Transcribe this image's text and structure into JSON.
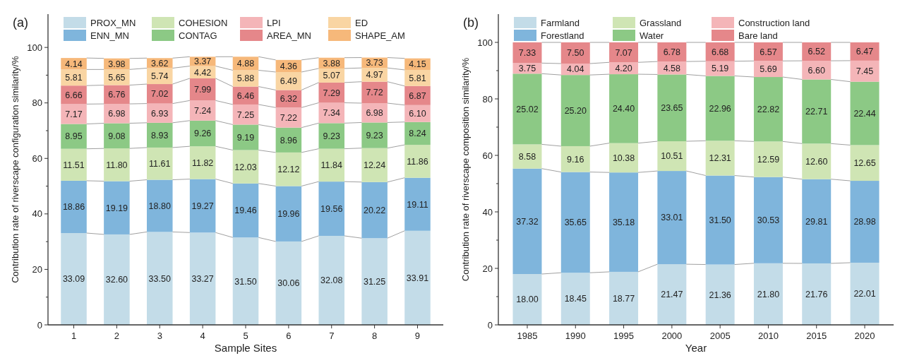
{
  "chart_data": [
    {
      "type": "bar",
      "title": "(a)",
      "xlabel": "Sample Sites",
      "ylabel": "Contribution rate of riverscape configuration similarity/%",
      "stacked": true,
      "legend": "top",
      "grid": false,
      "categories": [
        "1",
        "2",
        "3",
        "4",
        "5",
        "6",
        "7",
        "8",
        "9"
      ],
      "ylim": [
        0,
        112
      ],
      "yticks": [
        0,
        {
          "value": 10,
          "label": null
        },
        20,
        {
          "value": 30,
          "label": null
        },
        40,
        {
          "value": 50,
          "label": null
        },
        60,
        {
          "value": 70,
          "label": null
        },
        80,
        {
          "value": 90,
          "label": null
        },
        100
      ],
      "series": [
        {
          "name": "PROX_MN",
          "color": "#c3dce8",
          "values": [
            33.09,
            32.6,
            33.5,
            33.27,
            31.5,
            30.06,
            32.08,
            31.25,
            33.91
          ],
          "value_labels": [
            "33.09",
            "32.60",
            "33.50",
            "33.27",
            "31.50",
            "30.06",
            "32.08",
            "31.25",
            "33.91"
          ]
        },
        {
          "name": "ENN_MN",
          "color": "#7fb5dc",
          "values": [
            18.86,
            19.19,
            18.8,
            19.27,
            19.46,
            19.96,
            19.56,
            20.22,
            19.11
          ],
          "value_labels": [
            "18.86",
            "19.19",
            "18.80",
            "19.27",
            "19.46",
            "19.96",
            "19.56",
            "20.22",
            "19.11"
          ]
        },
        {
          "name": "COHESION",
          "color": "#cfe5b4",
          "values": [
            11.51,
            11.8,
            11.61,
            11.82,
            12.03,
            12.12,
            11.84,
            12.24,
            11.86
          ],
          "value_labels": [
            "11.51",
            "11.80",
            "11.61",
            "11.82",
            "12.03",
            "12.12",
            "11.84",
            "12.24",
            "11.86"
          ]
        },
        {
          "name": "CONTAG",
          "color": "#8cc985",
          "values": [
            8.95,
            9.08,
            8.93,
            9.26,
            9.19,
            8.96,
            9.23,
            9.23,
            8.24
          ],
          "value_labels": [
            "8.95",
            "9.08",
            "8.93",
            "9.26",
            "9.19",
            "8.96",
            "9.23",
            "9.23",
            "8.24"
          ]
        },
        {
          "name": "LPI",
          "color": "#f4b5b8",
          "values": [
            7.17,
            6.98,
            6.93,
            7.24,
            7.25,
            7.22,
            7.34,
            6.98,
            6.1
          ],
          "value_labels": [
            "7.17",
            "6.98",
            "6.93",
            "7.24",
            "7.25",
            "7.22",
            "7.34",
            "6.98",
            "6.10"
          ]
        },
        {
          "name": "AREA_MN",
          "color": "#e5878a",
          "values": [
            6.66,
            6.76,
            7.02,
            7.99,
            6.46,
            6.32,
            7.29,
            7.72,
            6.87
          ],
          "value_labels": [
            "6.66",
            "6.76",
            "7.02",
            "7.99",
            "6.46",
            "6.32",
            "7.29",
            "7.72",
            "6.87"
          ]
        },
        {
          "name": "ED",
          "color": "#f9d5a3",
          "values": [
            5.81,
            5.65,
            5.74,
            4.42,
            5.88,
            6.49,
            5.07,
            4.97,
            5.81
          ],
          "value_labels": [
            "5.81",
            "5.65",
            "5.74",
            "4.42",
            "5.88",
            "6.49",
            "5.07",
            "4.97",
            "5.81"
          ]
        },
        {
          "name": "SHAPE_AM",
          "color": "#f6b87a",
          "values": [
            4.14,
            3.98,
            3.62,
            3.37,
            4.88,
            4.36,
            3.88,
            3.73,
            4.15
          ],
          "value_labels": [
            "4.14",
            "3.98",
            "3.62",
            "3.37",
            "4.88",
            "4.36",
            "3.88",
            "3.73",
            "4.15"
          ]
        }
      ]
    },
    {
      "type": "bar",
      "title": "(b)",
      "xlabel": "Year",
      "ylabel": "Contribution rate of riverscape composition similarity/%",
      "stacked": true,
      "legend": "top",
      "grid": false,
      "categories": [
        "1985",
        "1990",
        "1995",
        "2000",
        "2005",
        "2010",
        "2015",
        "2020"
      ],
      "ylim": [
        0,
        110
      ],
      "yticks": [
        0,
        {
          "value": 10,
          "label": null
        },
        20,
        {
          "value": 30,
          "label": null
        },
        40,
        {
          "value": 50,
          "label": null
        },
        60,
        {
          "value": 70,
          "label": null
        },
        80,
        {
          "value": 90,
          "label": null
        },
        100
      ],
      "series": [
        {
          "name": "Farmland",
          "color": "#c3dce8",
          "values": [
            18.0,
            18.45,
            18.77,
            21.47,
            21.36,
            21.8,
            21.76,
            22.01
          ],
          "value_labels": [
            "18.00",
            "18.45",
            "18.77",
            "21.47",
            "21.36",
            "21.80",
            "21.76",
            "22.01"
          ]
        },
        {
          "name": "Forestland",
          "color": "#7fb5dc",
          "values": [
            37.32,
            35.65,
            35.18,
            33.01,
            31.5,
            30.53,
            29.81,
            28.98
          ],
          "value_labels": [
            "37.32",
            "35.65",
            "35.18",
            "33.01",
            "31.50",
            "30.53",
            "29.81",
            "28.98"
          ]
        },
        {
          "name": "Grassland",
          "color": "#cfe5b4",
          "values": [
            8.58,
            9.16,
            10.38,
            10.51,
            12.31,
            12.59,
            12.6,
            12.65
          ],
          "value_labels": [
            "8.58",
            "9.16",
            "10.38",
            "10.51",
            "12.31",
            "12.59",
            "12.60",
            "12.65"
          ]
        },
        {
          "name": "Water",
          "color": "#8cc985",
          "values": [
            25.02,
            25.2,
            24.4,
            23.65,
            22.96,
            22.82,
            22.71,
            22.44
          ],
          "value_labels": [
            "25.02",
            "25.20",
            "24.40",
            "23.65",
            "22.96",
            "22.82",
            "22.71",
            "22.44"
          ]
        },
        {
          "name": "Construction land",
          "color": "#f4b5b8",
          "values": [
            3.75,
            4.04,
            4.2,
            4.58,
            5.19,
            5.69,
            6.6,
            7.45
          ],
          "value_labels": [
            "3.75",
            "4.04",
            "4.20",
            "4.58",
            "5.19",
            "5.69",
            "6.60",
            "7.45"
          ]
        },
        {
          "name": "Bare land",
          "color": "#e5878a",
          "values": [
            7.33,
            7.5,
            7.07,
            6.78,
            6.68,
            6.57,
            6.52,
            6.47
          ],
          "value_labels": [
            "7.33",
            "7.50",
            "7.07",
            "6.78",
            "6.68",
            "6.57",
            "6.52",
            "6.47"
          ]
        }
      ]
    }
  ]
}
